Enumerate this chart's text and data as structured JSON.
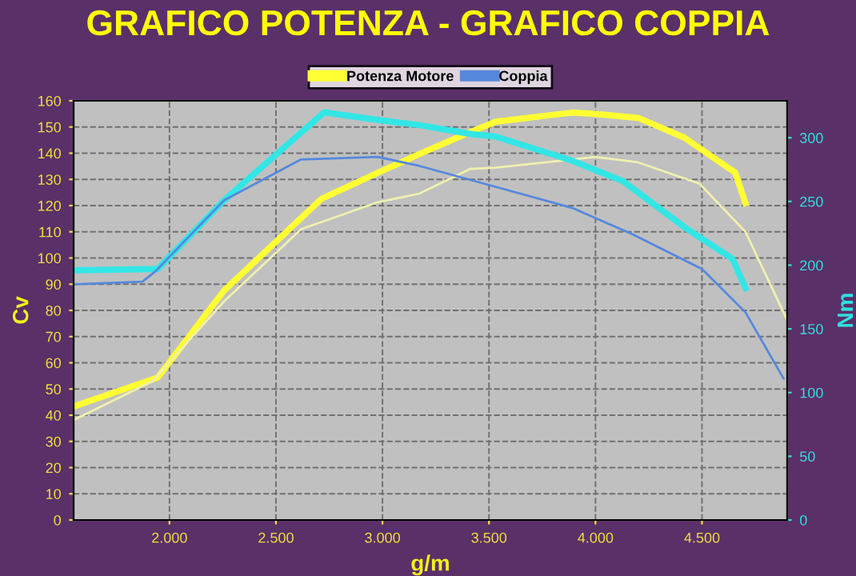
{
  "chart_data": {
    "type": "line",
    "title": "GRAFICO POTENZA - GRAFICO COPPIA",
    "xlabel": "g/m",
    "ylabel": "Cv",
    "y2label": "Nm",
    "xlim": [
      1550,
      4900
    ],
    "xticks": [
      {
        "value": 2000,
        "label": "2.000"
      },
      {
        "value": 2500,
        "label": "2.500"
      },
      {
        "value": 3000,
        "label": "3.000"
      },
      {
        "value": 3500,
        "label": "3.500"
      },
      {
        "value": 4000,
        "label": "4.000"
      },
      {
        "value": 4500,
        "label": "4.500"
      }
    ],
    "ylim": [
      0,
      160
    ],
    "yticks": [
      0,
      10,
      20,
      30,
      40,
      50,
      60,
      70,
      80,
      90,
      100,
      110,
      120,
      130,
      140,
      150,
      160
    ],
    "y2lim": [
      0,
      329
    ],
    "y2ticks": [
      0,
      50,
      100,
      150,
      200,
      250,
      300
    ],
    "grid": true,
    "legend": "top",
    "line_style": "solid",
    "marker": "none",
    "series": [
      {
        "name": "Potenza Motore",
        "color": "#ffff33",
        "x": [
          1554,
          1945,
          2257,
          2714,
          2978,
          3171,
          3411,
          3531,
          3890,
          3997,
          4200,
          4416,
          4656,
          4704
        ],
        "values": [
          43.4,
          54.4,
          87.6,
          122.6,
          132.5,
          139.6,
          148,
          152,
          155.5,
          155,
          153.5,
          146,
          132.6,
          121
        ]
      },
      {
        "color": "#f0f0b0",
        "x": [
          1554,
          1920,
          2257,
          2618,
          2978,
          3171,
          3411,
          3531,
          3890,
          3997,
          4200,
          4488,
          4704,
          4896
        ],
        "values": [
          38.3,
          53,
          83.5,
          111,
          121.3,
          124.5,
          134,
          134.5,
          137.6,
          138.6,
          136.5,
          128.4,
          110,
          77
        ]
      },
      {
        "color": "#33e6e6",
        "axis": "y2",
        "x": [
          1554,
          1945,
          2257,
          2726,
          2978,
          3171,
          3411,
          3531,
          3890,
          4129,
          4416,
          4643,
          4704
        ],
        "values": [
          196,
          197,
          251,
          320,
          314,
          310,
          303,
          301,
          282,
          266,
          230,
          205,
          182
        ]
      },
      {
        "name": "Coppia",
        "color": "#5588dd",
        "axis": "y2",
        "x": [
          1554,
          1873,
          1933,
          2257,
          2618,
          2978,
          3171,
          3411,
          3890,
          4177,
          4500,
          4704,
          4883
        ],
        "values": [
          185,
          187,
          195,
          251,
          283,
          285,
          278,
          267,
          245,
          224,
          197,
          163,
          111
        ]
      }
    ]
  }
}
